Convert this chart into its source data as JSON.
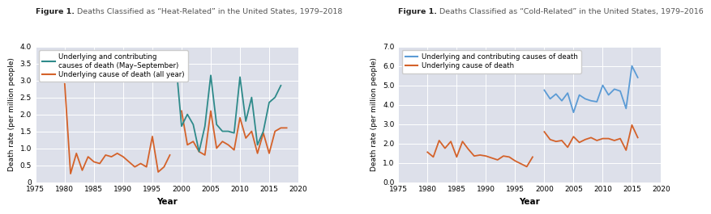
{
  "heat_title_bold": "Figure 1.",
  "heat_title_rest": " Deaths Classified as “Heat-Related” in the United States, 1979–2018",
  "cold_title_bold": "Figure 1.",
  "cold_title_rest": " Deaths Classified as “Cold-Related” in the United States, 1979–2016",
  "heat_years_underlying": [
    1979,
    1980,
    1981,
    1982,
    1983,
    1984,
    1985,
    1986,
    1987,
    1988,
    1989,
    1990,
    1991,
    1992,
    1993,
    1994,
    1995,
    1996,
    1997,
    1998,
    1999,
    2000,
    2001,
    2002,
    2003,
    2004,
    2005,
    2006,
    2007,
    2008,
    2009,
    2010,
    2011,
    2012,
    2013,
    2014,
    2015,
    2016,
    2017,
    2018
  ],
  "heat_underlying": [
    null,
    2.9,
    0.25,
    0.85,
    0.35,
    0.75,
    0.6,
    0.55,
    0.8,
    0.75,
    0.85,
    0.75,
    0.6,
    0.45,
    0.55,
    0.45,
    1.35,
    0.3,
    0.45,
    0.8,
    null,
    2.1,
    1.1,
    1.2,
    0.9,
    0.8,
    2.1,
    1.0,
    1.2,
    1.1,
    0.95,
    1.9,
    1.3,
    1.5,
    0.85,
    1.45,
    0.85,
    1.5,
    1.6,
    1.6
  ],
  "heat_years_contrib": [
    1999,
    2000,
    2001,
    2002,
    2003,
    2004,
    2005,
    2006,
    2007,
    2008,
    2009,
    2010,
    2011,
    2012,
    2013,
    2014,
    2015,
    2016,
    2017,
    2018
  ],
  "heat_contrib": [
    3.6,
    1.65,
    2.0,
    1.7,
    0.9,
    1.65,
    3.15,
    1.7,
    1.5,
    1.5,
    1.45,
    3.1,
    1.8,
    2.5,
    1.1,
    1.5,
    2.35,
    2.5,
    2.85,
    null
  ],
  "cold_years_underlying": [
    1979,
    1980,
    1981,
    1982,
    1983,
    1984,
    1985,
    1986,
    1987,
    1988,
    1989,
    1990,
    1991,
    1992,
    1993,
    1994,
    1995,
    1996,
    1997,
    1998,
    1999,
    2000,
    2001,
    2002,
    2003,
    2004,
    2005,
    2006,
    2007,
    2008,
    2009,
    2010,
    2011,
    2012,
    2013,
    2014,
    2015,
    2016
  ],
  "cold_underlying": [
    null,
    1.55,
    1.3,
    2.15,
    1.75,
    2.1,
    1.3,
    2.1,
    1.7,
    1.35,
    1.4,
    1.35,
    1.25,
    1.15,
    1.35,
    1.3,
    1.1,
    0.95,
    0.8,
    1.3,
    null,
    2.6,
    2.2,
    2.1,
    2.15,
    1.8,
    2.35,
    2.05,
    2.2,
    2.3,
    2.15,
    2.25,
    2.25,
    2.15,
    2.25,
    1.65,
    2.95,
    2.3
  ],
  "cold_years_contrib": [
    1999,
    2000,
    2001,
    2002,
    2003,
    2004,
    2005,
    2006,
    2007,
    2008,
    2009,
    2010,
    2011,
    2012,
    2013,
    2014,
    2015,
    2016
  ],
  "cold_contrib": [
    null,
    4.75,
    4.3,
    4.55,
    4.2,
    4.6,
    3.6,
    4.5,
    4.3,
    4.2,
    4.15,
    5.0,
    4.5,
    4.8,
    4.7,
    3.8,
    6.0,
    5.4
  ],
  "heat_teal": "#2e8a8a",
  "heat_orange": "#d4622a",
  "cold_blue": "#5b9bd5",
  "cold_orange": "#d4622a",
  "bg_color": "#dde0ea",
  "fig_bg": "#ffffff",
  "heat_ylim": [
    0,
    4.0
  ],
  "heat_yticks": [
    0,
    0.5,
    1.0,
    1.5,
    2.0,
    2.5,
    3.0,
    3.5,
    4.0
  ],
  "cold_ylim": [
    0.0,
    7.0
  ],
  "cold_yticks": [
    0.0,
    1.0,
    2.0,
    3.0,
    4.0,
    5.0,
    6.0,
    7.0
  ],
  "xlim": [
    1975,
    2020
  ],
  "xticks": [
    1975,
    1980,
    1985,
    1990,
    1995,
    2000,
    2005,
    2010,
    2015,
    2020
  ],
  "ylabel": "Death rate (per million people)",
  "xlabel": "Year",
  "heat_legend1": "Underlying and contributing\ncauses of death (May–September)",
  "heat_legend2": "Underlying cause of death (all year)",
  "cold_legend1": "Underlying and contributing causes of death",
  "cold_legend2": "Underlying cause of death",
  "title_bold_color": "#222222",
  "title_rest_color": "#555555",
  "title_fontsize": 6.8,
  "tick_fontsize": 6.5,
  "label_fontsize": 6.5,
  "xlabel_fontsize": 7.5,
  "legend_fontsize": 6.2
}
